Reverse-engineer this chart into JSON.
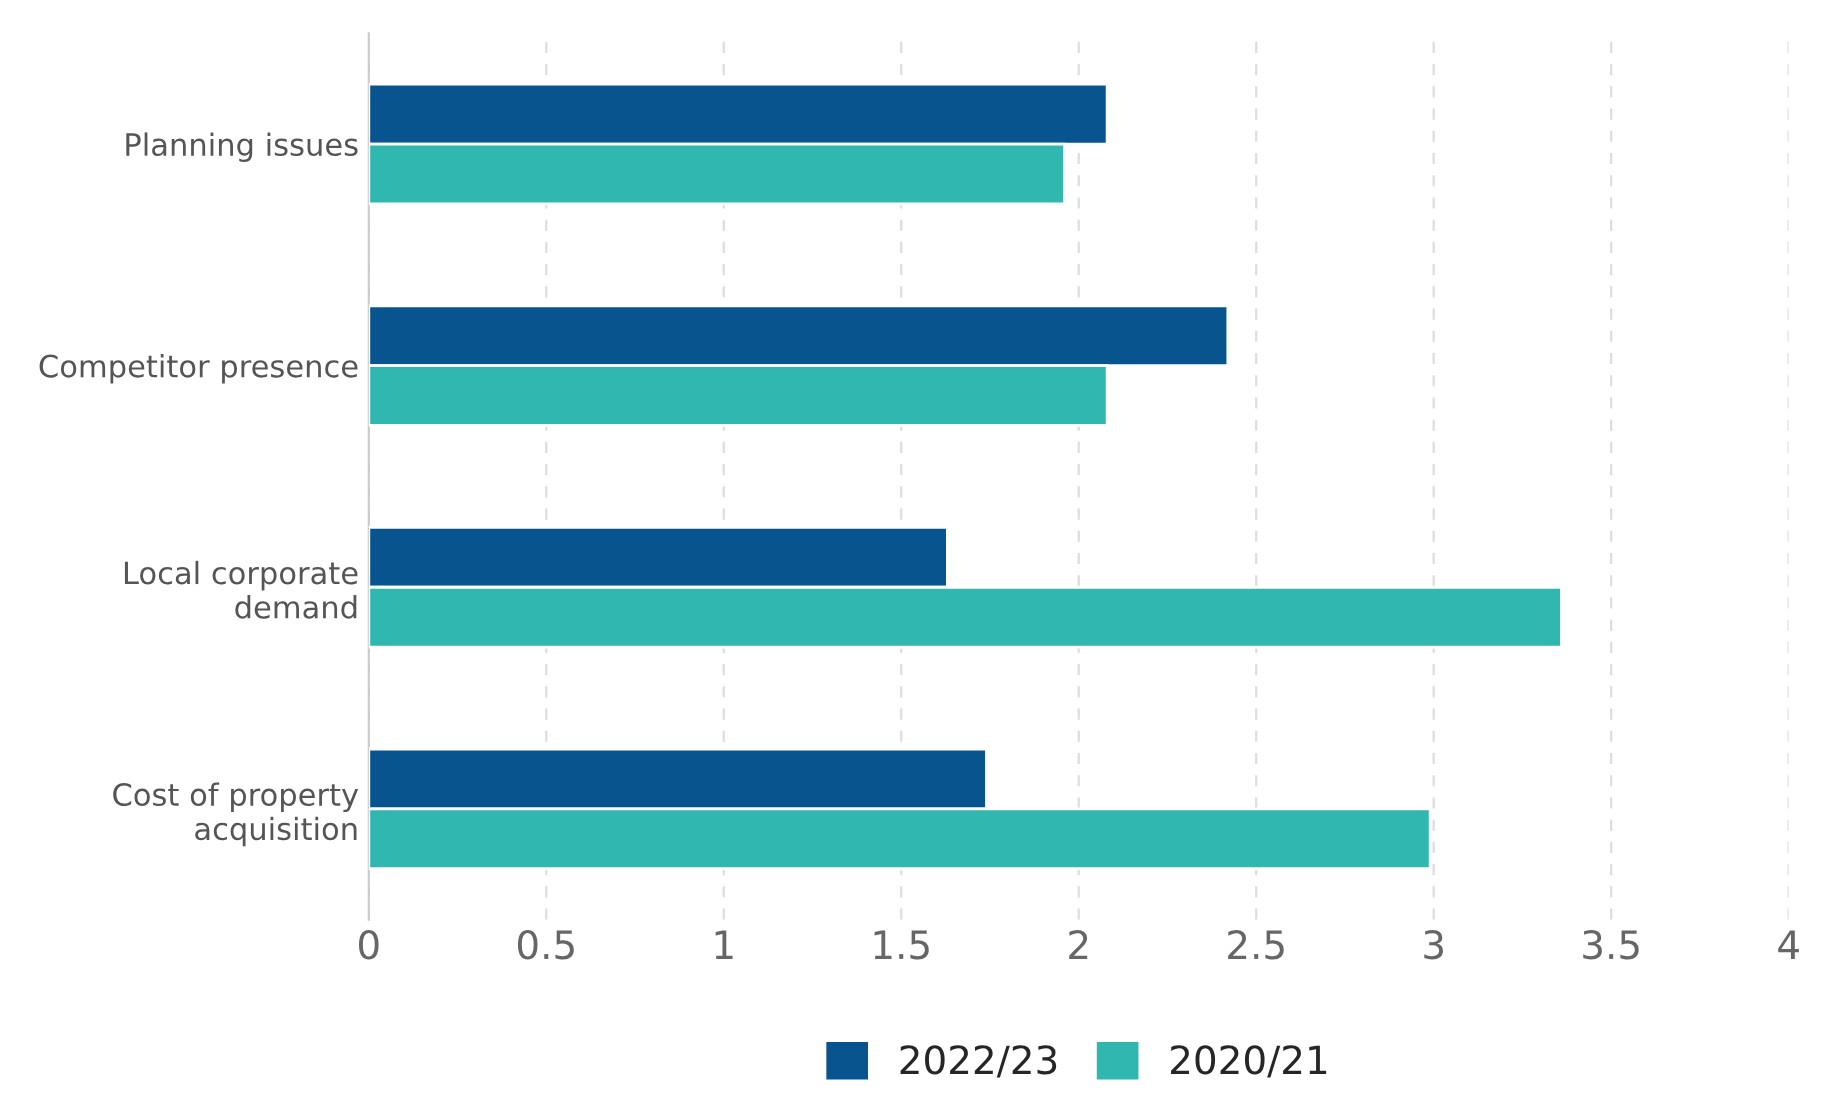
{
  "chart_data": {
    "type": "bar",
    "orientation": "horizontal",
    "categories": [
      "Planning issues",
      "Competitor presence",
      "Local corporate\ndemand",
      "Cost of property\nacquisition"
    ],
    "series": [
      {
        "name": "2022/23",
        "color": "#07548f",
        "values": [
          2.08,
          2.42,
          1.63,
          1.74
        ]
      },
      {
        "name": "2020/21",
        "color": "#30b7b0",
        "values": [
          1.96,
          2.08,
          3.36,
          2.99
        ]
      }
    ],
    "xlim": [
      0,
      4
    ],
    "xticks": [
      0,
      0.5,
      1,
      1.5,
      2,
      2.5,
      3,
      3.5,
      4
    ],
    "grid": "x",
    "legend": "bottom"
  }
}
